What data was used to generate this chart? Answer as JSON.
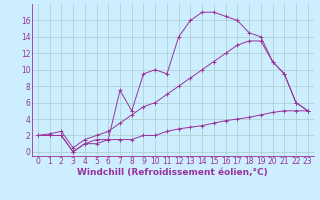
{
  "line1_x": [
    0,
    1,
    2,
    3,
    4,
    5,
    6,
    7,
    8,
    9,
    10,
    11,
    12,
    13,
    14,
    15,
    16,
    17,
    18,
    19,
    20,
    21,
    22,
    23
  ],
  "line1_y": [
    2,
    2,
    2,
    0,
    1,
    1.5,
    1.5,
    7.5,
    5,
    9.5,
    10,
    9.5,
    14,
    16,
    17,
    17,
    16.5,
    16,
    14.5,
    14,
    11,
    9.5,
    6,
    5
  ],
  "line2_x": [
    0,
    1,
    2,
    3,
    4,
    5,
    6,
    7,
    8,
    9,
    10,
    11,
    12,
    13,
    14,
    15,
    16,
    17,
    18,
    19,
    20,
    21,
    22,
    23
  ],
  "line2_y": [
    2,
    2.2,
    2.5,
    0.5,
    1.5,
    2.0,
    2.5,
    3.5,
    4.5,
    5.5,
    6.0,
    7.0,
    8.0,
    9.0,
    10.0,
    11.0,
    12.0,
    13.0,
    13.5,
    13.5,
    11.0,
    9.5,
    6.0,
    5.0
  ],
  "line3_x": [
    0,
    1,
    2,
    3,
    4,
    5,
    6,
    7,
    8,
    9,
    10,
    11,
    12,
    13,
    14,
    15,
    16,
    17,
    18,
    19,
    20,
    21,
    22,
    23
  ],
  "line3_y": [
    2,
    2,
    2,
    0,
    1,
    1,
    1.5,
    1.5,
    1.5,
    2.0,
    2.0,
    2.5,
    2.8,
    3.0,
    3.2,
    3.5,
    3.8,
    4.0,
    4.2,
    4.5,
    4.8,
    5.0,
    5.0,
    5.0
  ],
  "color": "#993399",
  "bg_color": "#cceeff",
  "grid_color": "#aacccc",
  "xlabel": "Windchill (Refroidissement éolien,°C)",
  "ylim": [
    -0.5,
    18
  ],
  "xlim": [
    -0.5,
    23.5
  ],
  "yticks": [
    0,
    2,
    4,
    6,
    8,
    10,
    12,
    14,
    16
  ],
  "xticks": [
    0,
    1,
    2,
    3,
    4,
    5,
    6,
    7,
    8,
    9,
    10,
    11,
    12,
    13,
    14,
    15,
    16,
    17,
    18,
    19,
    20,
    21,
    22,
    23
  ],
  "font_size": 5.5,
  "label_font_size": 6.5,
  "marker_size": 3,
  "linewidth": 0.7
}
